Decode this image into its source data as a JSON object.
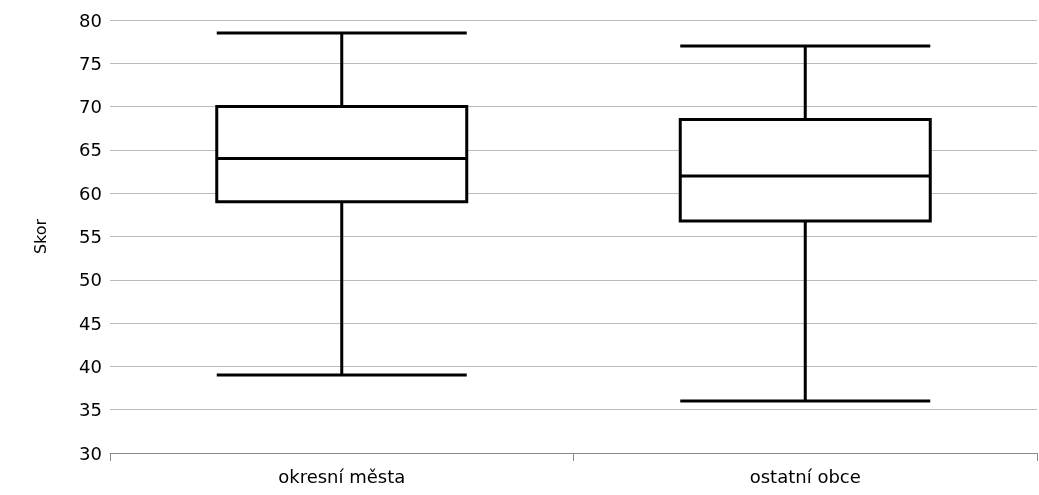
{
  "chart_data": {
    "type": "box",
    "ylabel": "Skor",
    "categories": [
      "okresní města",
      "ostatní obce"
    ],
    "boxes": [
      {
        "low": 39,
        "q1": 59,
        "median": 64,
        "q3": 70,
        "high": 78.5
      },
      {
        "low": 36,
        "q1": 56.8,
        "median": 62,
        "q3": 68.5,
        "high": 77
      }
    ],
    "color": "#000000",
    "ylim": [
      30,
      80
    ],
    "yticks": [
      30,
      35,
      40,
      45,
      50,
      55,
      60,
      65,
      70,
      75,
      80
    ],
    "grid": "y"
  }
}
